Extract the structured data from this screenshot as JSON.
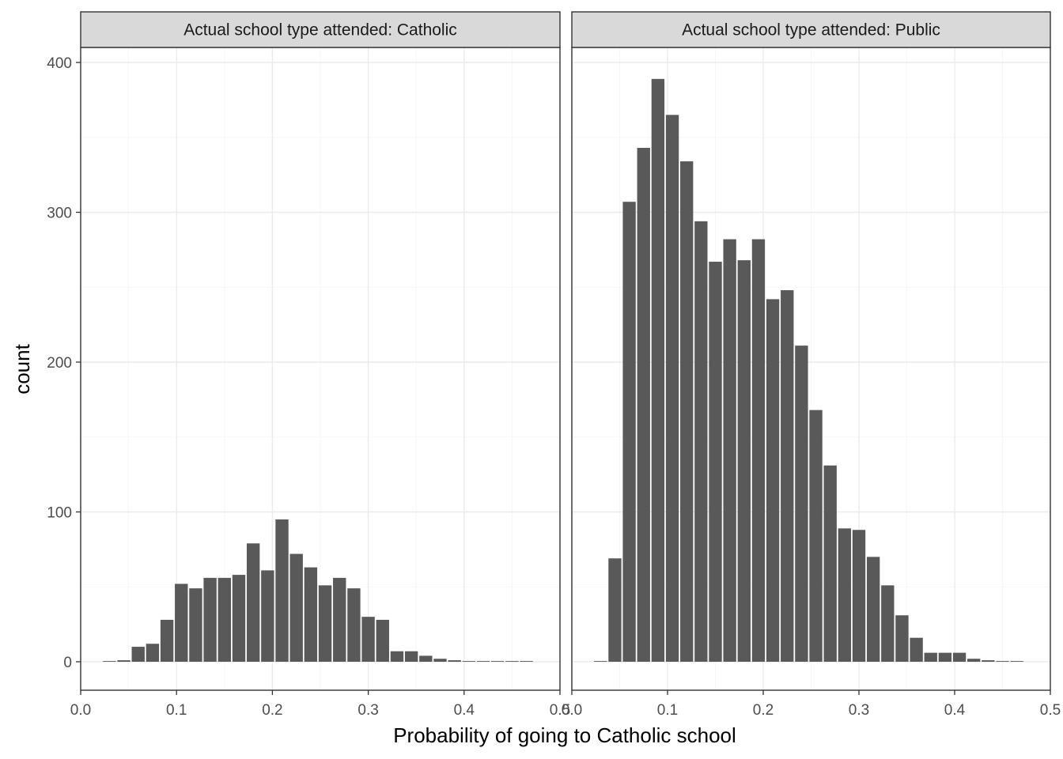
{
  "chart_data": {
    "type": "bar",
    "xlabel": "Probability of going to Catholic school",
    "ylabel": "count",
    "xlim": [
      0,
      0.5
    ],
    "ylim": [
      -18,
      415
    ],
    "x_ticks": [
      "0.0",
      "0.1",
      "0.2",
      "0.3",
      "0.4",
      "0.5"
    ],
    "y_ticks": [
      "0",
      "100",
      "200",
      "300",
      "400"
    ],
    "grid": true,
    "bin_width": 0.015,
    "bin_centers": [
      0.03,
      0.045,
      0.06,
      0.075,
      0.09,
      0.105,
      0.12,
      0.135,
      0.15,
      0.165,
      0.18,
      0.195,
      0.21,
      0.225,
      0.24,
      0.255,
      0.27,
      0.285,
      0.3,
      0.315,
      0.33,
      0.345,
      0.36,
      0.375,
      0.39,
      0.405,
      0.42,
      0.435,
      0.45,
      0.465
    ],
    "panels": [
      {
        "strip_label": "Actual school type attended: Catholic",
        "values": [
          0,
          1,
          10,
          12,
          28,
          52,
          49,
          56,
          56,
          58,
          79,
          61,
          95,
          72,
          63,
          51,
          56,
          49,
          30,
          28,
          7,
          7,
          4,
          2,
          1,
          0,
          0,
          0,
          0,
          0
        ]
      },
      {
        "strip_label": "Actual school type attended: Public",
        "values": [
          0,
          69,
          307,
          343,
          389,
          365,
          334,
          294,
          267,
          282,
          268,
          282,
          242,
          248,
          211,
          168,
          131,
          89,
          88,
          70,
          51,
          31,
          16,
          6,
          6,
          6,
          2,
          1,
          0,
          0
        ]
      }
    ]
  }
}
